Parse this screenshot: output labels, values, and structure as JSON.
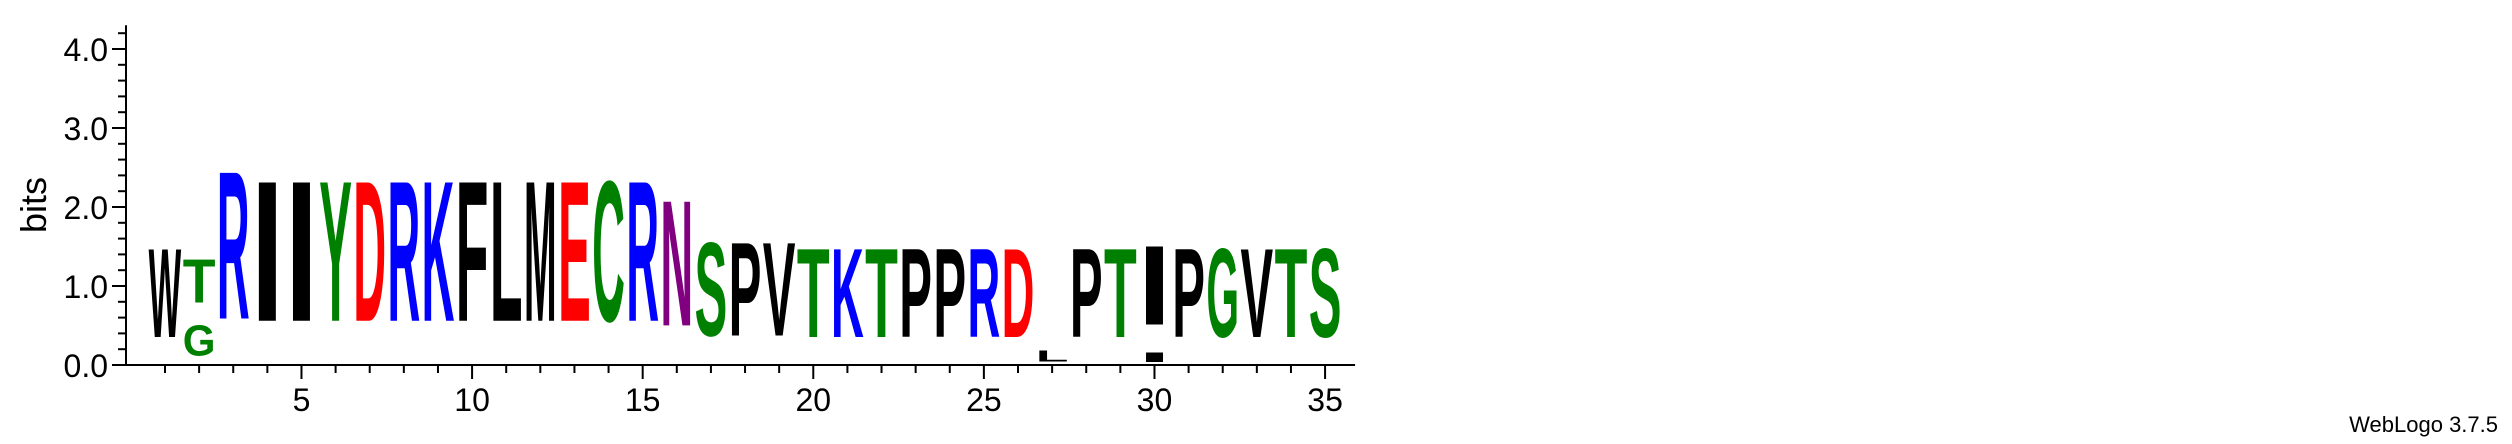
{
  "chart_data": {
    "type": "sequence-logo",
    "ylabel": "bits",
    "ylim": [
      0,
      4.3
    ],
    "y_ticks": [
      "0.0",
      "1.0",
      "2.0",
      "3.0",
      "4.0"
    ],
    "x_ticks": [
      5,
      10,
      15,
      20,
      25,
      30,
      35
    ],
    "x_range": [
      1,
      35
    ],
    "positions": [
      {
        "pos": 1,
        "letters": [
          {
            "ch": "W",
            "bits": 1.8
          }
        ]
      },
      {
        "pos": 2,
        "letters": [
          {
            "ch": "G",
            "bits": 0.62
          },
          {
            "ch": "T",
            "bits": 0.88
          }
        ]
      },
      {
        "pos": 3,
        "letters": [
          {
            "ch": "R",
            "bits": 3.0
          }
        ]
      },
      {
        "pos": 4,
        "letters": [
          {
            "ch": "I",
            "bits": 2.85
          }
        ]
      },
      {
        "pos": 5,
        "letters": [
          {
            "ch": "I",
            "bits": 2.85
          }
        ]
      },
      {
        "pos": 6,
        "letters": [
          {
            "ch": "Y",
            "bits": 2.85
          }
        ]
      },
      {
        "pos": 7,
        "letters": [
          {
            "ch": "D",
            "bits": 2.85
          }
        ]
      },
      {
        "pos": 8,
        "letters": [
          {
            "ch": "R",
            "bits": 2.85
          }
        ]
      },
      {
        "pos": 9,
        "letters": [
          {
            "ch": "K",
            "bits": 2.85
          }
        ]
      },
      {
        "pos": 10,
        "letters": [
          {
            "ch": "F",
            "bits": 2.85
          }
        ]
      },
      {
        "pos": 11,
        "letters": [
          {
            "ch": "L",
            "bits": 2.85
          }
        ]
      },
      {
        "pos": 12,
        "letters": [
          {
            "ch": "M",
            "bits": 2.85
          }
        ]
      },
      {
        "pos": 13,
        "letters": [
          {
            "ch": "E",
            "bits": 2.85
          }
        ]
      },
      {
        "pos": 14,
        "letters": [
          {
            "ch": "C",
            "bits": 2.85
          }
        ]
      },
      {
        "pos": 15,
        "letters": [
          {
            "ch": "R",
            "bits": 2.85
          }
        ]
      },
      {
        "pos": 16,
        "letters": [
          {
            "ch": "N",
            "bits": 2.55
          }
        ]
      },
      {
        "pos": 17,
        "letters": [
          {
            "ch": "S",
            "bits": 1.9
          }
        ]
      },
      {
        "pos": 18,
        "letters": [
          {
            "ch": "P",
            "bits": 1.9
          }
        ]
      },
      {
        "pos": 19,
        "letters": [
          {
            "ch": "V",
            "bits": 1.9
          }
        ]
      },
      {
        "pos": 20,
        "letters": [
          {
            "ch": "T",
            "bits": 1.8
          }
        ]
      },
      {
        "pos": 21,
        "letters": [
          {
            "ch": "K",
            "bits": 1.8
          }
        ]
      },
      {
        "pos": 22,
        "letters": [
          {
            "ch": "T",
            "bits": 1.8
          }
        ]
      },
      {
        "pos": 23,
        "letters": [
          {
            "ch": "P",
            "bits": 1.8
          }
        ]
      },
      {
        "pos": 24,
        "letters": [
          {
            "ch": "P",
            "bits": 1.8
          }
        ]
      },
      {
        "pos": 25,
        "letters": [
          {
            "ch": "R",
            "bits": 1.8
          }
        ]
      },
      {
        "pos": 26,
        "letters": [
          {
            "ch": "D",
            "bits": 1.8
          }
        ]
      },
      {
        "pos": 27,
        "letters": [
          {
            "ch": "L",
            "bits": 0.22
          }
        ]
      },
      {
        "pos": 28,
        "letters": [
          {
            "ch": "P",
            "bits": 1.8
          }
        ]
      },
      {
        "pos": 29,
        "letters": [
          {
            "ch": "T",
            "bits": 1.8
          }
        ]
      },
      {
        "pos": 30,
        "letters": [
          {
            "ch": "I",
            "bits": 0.2
          },
          {
            "ch": "I",
            "bits": 1.6,
            "stack": "upper"
          }
        ]
      },
      {
        "pos": 31,
        "letters": [
          {
            "ch": "P",
            "bits": 1.8
          }
        ]
      },
      {
        "pos": 32,
        "letters": [
          {
            "ch": "G",
            "bits": 1.8
          }
        ]
      },
      {
        "pos": 33,
        "letters": [
          {
            "ch": "V",
            "bits": 1.8
          }
        ]
      },
      {
        "pos": 34,
        "letters": [
          {
            "ch": "T",
            "bits": 1.8
          }
        ]
      },
      {
        "pos": 35,
        "letters": [
          {
            "ch": "S",
            "bits": 1.8
          }
        ]
      }
    ],
    "colors": {
      "R": "#0000ff",
      "K": "#0000ff",
      "D": "#ff0000",
      "E": "#ff0000",
      "Y": "#008000",
      "C": "#008000",
      "S": "#008000",
      "T": "#008000",
      "G": "#008000",
      "N": "#800080",
      "I": "#000000",
      "F": "#000000",
      "L": "#000000",
      "M": "#000000",
      "P": "#000000",
      "V": "#000000",
      "W": "#000000"
    }
  },
  "credit": "WebLogo 3.7.5"
}
